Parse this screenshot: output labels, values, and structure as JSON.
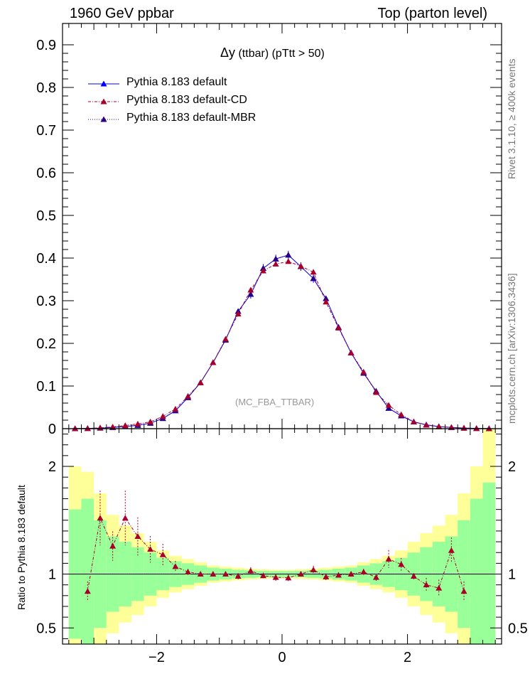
{
  "header": {
    "left": "1960 GeV ppbar",
    "right": "Top (parton level)"
  },
  "side_labels": {
    "rivet": "Rivet 3.1.10, ≥ 400k events",
    "mcplots": "mcplots.cern.ch [arXiv:1306.3436]"
  },
  "watermark": "(MC_FBA_TTBAR)",
  "colors": {
    "default": "#0000ff",
    "cd": "#a8002a",
    "mbr": "#2a0087",
    "band_inner": "#99ff99",
    "band_outer": "#ffff99"
  },
  "chart_data": [
    {
      "type": "line",
      "title_symbol": "Δy",
      "title_rest": " (ttbar) (pTtt > 50)",
      "xlim": [
        -3.5,
        3.5
      ],
      "ylim": [
        0,
        0.95
      ],
      "yticks": [
        "0",
        "0.1",
        "0.2",
        "0.3",
        "0.4",
        "0.5",
        "0.6",
        "0.7",
        "0.8",
        "0.9"
      ],
      "x": [
        -3.3,
        -3.1,
        -2.9,
        -2.7,
        -2.5,
        -2.3,
        -2.1,
        -1.9,
        -1.7,
        -1.5,
        -1.3,
        -1.1,
        -0.9,
        -0.7,
        -0.5,
        -0.3,
        -0.1,
        0.1,
        0.3,
        0.5,
        0.7,
        0.9,
        1.1,
        1.3,
        1.5,
        1.7,
        1.9,
        2.1,
        2.3,
        2.5,
        2.7,
        2.9,
        3.1,
        3.3
      ],
      "series": [
        {
          "name": "Pythia 8.183 default",
          "values": [
            0.0003,
            0.0006,
            0.0014,
            0.003,
            0.005,
            0.008,
            0.013,
            0.024,
            0.042,
            0.073,
            0.108,
            0.155,
            0.208,
            0.275,
            0.315,
            0.376,
            0.398,
            0.407,
            0.38,
            0.352,
            0.305,
            0.238,
            0.178,
            0.13,
            0.088,
            0.048,
            0.03,
            0.016,
            0.009,
            0.005,
            0.003,
            0.0015,
            0.0007,
            0.0003
          ]
        },
        {
          "name": "Pythia 8.183 default-CD",
          "values": [
            0.0003,
            0.0005,
            0.002,
            0.004,
            0.0075,
            0.011,
            0.016,
            0.029,
            0.046,
            0.076,
            0.108,
            0.155,
            0.21,
            0.269,
            0.325,
            0.37,
            0.386,
            0.392,
            0.381,
            0.367,
            0.297,
            0.236,
            0.178,
            0.133,
            0.085,
            0.055,
            0.033,
            0.016,
            0.0085,
            0.0045,
            0.003,
            0.0013,
            0.0005,
            0.0003
          ]
        },
        {
          "name": "Pythia 8.183 default-MBR",
          "values": [
            0.0003,
            0.0006,
            0.0014,
            0.003,
            0.005,
            0.008,
            0.013,
            0.024,
            0.042,
            0.073,
            0.108,
            0.155,
            0.208,
            0.275,
            0.315,
            0.376,
            0.398,
            0.407,
            0.38,
            0.352,
            0.305,
            0.238,
            0.178,
            0.13,
            0.088,
            0.048,
            0.03,
            0.016,
            0.009,
            0.005,
            0.003,
            0.0015,
            0.0007,
            0.0003
          ]
        }
      ],
      "legend": [
        "Pythia 8.183 default",
        "Pythia 8.183 default-CD",
        "Pythia 8.183 default-MBR"
      ]
    },
    {
      "type": "line",
      "ylabel": "Ratio to Pythia 8.183 default",
      "xlim": [
        -3.5,
        3.5
      ],
      "ylim": [
        0.35,
        2.35
      ],
      "yticks": [
        "0.5",
        "1",
        "2"
      ],
      "xticks": [
        "−2",
        "0",
        "2"
      ],
      "x": [
        -3.1,
        -2.9,
        -2.7,
        -2.5,
        -2.3,
        -2.1,
        -1.9,
        -1.7,
        -1.5,
        -1.3,
        -1.1,
        -0.9,
        -0.7,
        -0.5,
        -0.3,
        -0.1,
        0.1,
        0.3,
        0.5,
        0.7,
        0.9,
        1.1,
        1.3,
        1.5,
        1.7,
        1.9,
        2.1,
        2.3,
        2.5,
        2.7,
        2.9
      ],
      "series": [
        {
          "name": "Pythia 8.183 default-CD",
          "values": [
            0.84,
            1.52,
            1.26,
            1.52,
            1.35,
            1.23,
            1.18,
            1.07,
            1.02,
            1.0,
            1.0,
            1.0,
            0.98,
            1.03,
            0.985,
            0.97,
            0.965,
            1.0,
            1.04,
            0.975,
            0.99,
            1.0,
            1.02,
            0.97,
            1.14,
            1.09,
            0.98,
            0.9,
            0.87,
            1.22,
            0.84
          ]
        },
        {
          "name": "Pythia 8.183 default-MBR",
          "values": [
            1,
            1,
            1,
            1,
            1,
            1,
            1,
            1,
            1,
            1,
            1,
            1,
            1,
            1,
            1,
            1,
            1,
            1,
            1,
            1,
            1,
            1,
            1,
            1,
            1,
            1,
            1,
            1,
            1,
            1,
            1
          ]
        }
      ],
      "band_edges": [
        -3.4,
        -3.2,
        -3.0,
        -2.8,
        -2.6,
        -2.4,
        -2.2,
        -2.0,
        -1.8,
        -1.6,
        -1.4,
        -1.2,
        -1.0,
        -0.8,
        -0.6,
        -0.4,
        -0.2,
        0.0,
        0.2,
        0.4,
        0.6,
        0.8,
        1.0,
        1.2,
        1.4,
        1.6,
        1.8,
        2.0,
        2.2,
        2.4,
        2.6,
        2.8,
        3.0,
        3.2,
        3.4
      ],
      "band_inner": [
        0.6,
        0.7,
        0.5,
        0.35,
        0.3,
        0.25,
        0.2,
        0.15,
        0.12,
        0.1,
        0.08,
        0.06,
        0.05,
        0.04,
        0.035,
        0.03,
        0.028,
        0.028,
        0.03,
        0.035,
        0.04,
        0.05,
        0.06,
        0.08,
        0.1,
        0.12,
        0.15,
        0.2,
        0.25,
        0.3,
        0.35,
        0.5,
        0.7,
        0.85
      ],
      "band_outer": [
        1.0,
        0.95,
        0.75,
        0.55,
        0.45,
        0.38,
        0.3,
        0.22,
        0.17,
        0.14,
        0.11,
        0.08,
        0.07,
        0.06,
        0.05,
        0.045,
        0.04,
        0.04,
        0.045,
        0.05,
        0.06,
        0.07,
        0.08,
        0.11,
        0.14,
        0.17,
        0.22,
        0.3,
        0.38,
        0.45,
        0.55,
        0.75,
        1.0,
        1.4
      ]
    }
  ]
}
